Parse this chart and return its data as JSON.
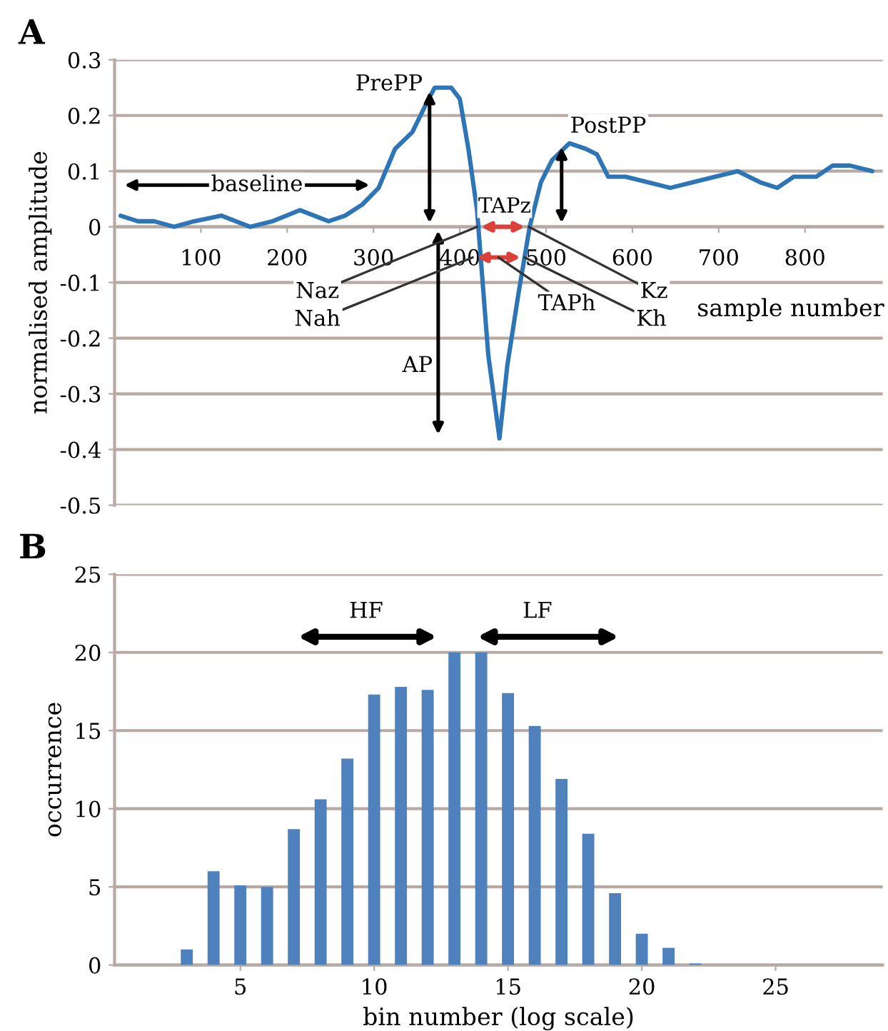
{
  "chart_data": [
    {
      "type": "line",
      "title": "A",
      "xlabel": "sample number",
      "ylabel": "normalised amplitude",
      "x": [
        7,
        27,
        46,
        69,
        92,
        124,
        157,
        183,
        215,
        248,
        267,
        287,
        306,
        325,
        345,
        364,
        371,
        390,
        400,
        410,
        420,
        433,
        446,
        455,
        468,
        481,
        494,
        507,
        527,
        546,
        559,
        572,
        592,
        618,
        644,
        670,
        696,
        722,
        748,
        768,
        787,
        813,
        832,
        852,
        878
      ],
      "series": [
        {
          "color": "#2e75b6",
          "values": [
            0.02,
            0.01,
            0.01,
            0.0,
            0.01,
            0.02,
            0.0,
            0.01,
            0.03,
            0.01,
            0.02,
            0.04,
            0.07,
            0.14,
            0.17,
            0.23,
            0.25,
            0.25,
            0.23,
            0.14,
            0.03,
            -0.23,
            -0.38,
            -0.25,
            -0.12,
            0.0,
            0.08,
            0.12,
            0.15,
            0.14,
            0.13,
            0.09,
            0.09,
            0.08,
            0.07,
            0.08,
            0.09,
            0.1,
            0.08,
            0.07,
            0.09,
            0.09,
            0.11,
            0.11,
            0.1
          ]
        }
      ],
      "xlim": [
        0,
        890
      ],
      "ylim": [
        -0.5,
        0.3
      ],
      "xticks": [
        100,
        200,
        300,
        400,
        500,
        600,
        700,
        800
      ],
      "yticks": [
        -0.5,
        -0.4,
        -0.3,
        -0.2,
        -0.1,
        0,
        0.1,
        0.2,
        0.3
      ],
      "grid": "y",
      "annotations": [
        "baseline",
        {
          "text": "PrePP",
          "x": 370,
          "y": 0.25
        },
        {
          "text": "PostPP",
          "x": 523,
          "y": 0.15
        },
        "AP",
        "TAPz",
        "TAPh",
        {
          "text": "Naz",
          "x": 420,
          "y": 0
        },
        {
          "text": "Nah",
          "x": 415,
          "y": -0.055
        },
        {
          "text": "Kz",
          "x": 480,
          "y": 0
        },
        {
          "text": "Kh",
          "x": 475,
          "y": -0.055
        }
      ]
    },
    {
      "type": "bar",
      "title": "B",
      "xlabel": "bin number (log scale)",
      "ylabel": "occurrence",
      "x": [
        1,
        2,
        3,
        4,
        5,
        6,
        7,
        8,
        9,
        10,
        11,
        12,
        13,
        14,
        15,
        16,
        17,
        18,
        19,
        20,
        21,
        22,
        23,
        24,
        25,
        26,
        27,
        28
      ],
      "series": [
        {
          "color": "#4f81bd",
          "values": [
            0,
            0,
            1,
            6,
            5.1,
            5,
            8.7,
            10.6,
            13.2,
            17.3,
            17.8,
            17.6,
            20,
            20,
            17.4,
            15.3,
            11.9,
            8.4,
            4.6,
            2,
            1.1,
            0.1,
            0,
            0,
            0,
            0,
            0,
            0
          ]
        }
      ],
      "xlim": [
        0.3,
        29
      ],
      "ylim": [
        0,
        25
      ],
      "xticks": [
        5,
        10,
        15,
        20,
        25
      ],
      "yticks": [
        0,
        5,
        10,
        15,
        20,
        25
      ],
      "grid": "y",
      "annotations": [
        "HF",
        "LF"
      ]
    }
  ]
}
